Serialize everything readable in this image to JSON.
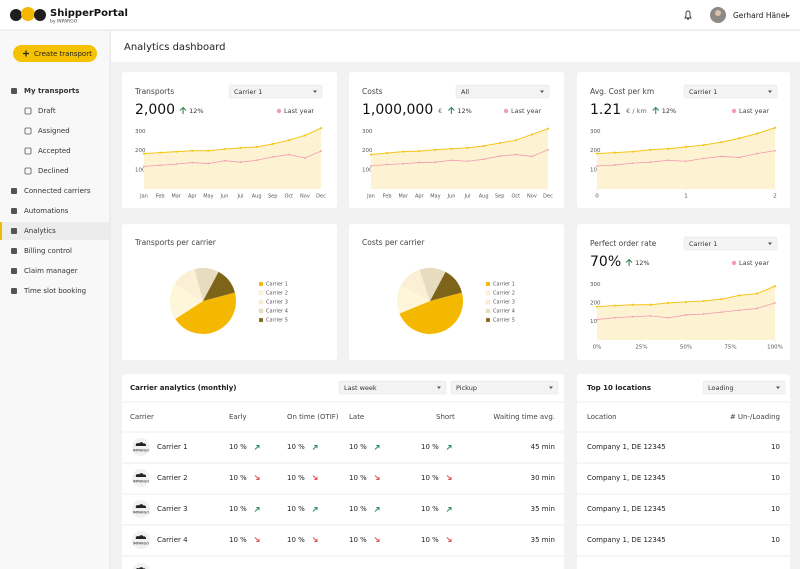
{
  "header": {
    "app_name": "ShipperPortal",
    "app_sub": "by INPARGO",
    "user_name": "Gerhard Hänel"
  },
  "sidebar": {
    "button": "Create transport",
    "items": [
      {
        "label": "My transports",
        "children": [
          {
            "label": "Draft"
          },
          {
            "label": "Assigned"
          },
          {
            "label": "Accepted"
          },
          {
            "label": "Declined"
          }
        ]
      },
      {
        "label": "Connected carriers"
      },
      {
        "label": "Automations"
      },
      {
        "label": "Analytics",
        "active": true
      },
      {
        "label": "Billing control"
      },
      {
        "label": "Claim manager"
      },
      {
        "label": "Time slot booking"
      }
    ]
  },
  "page_title": "Analytics dashboard",
  "chart_data": [
    {
      "type": "line",
      "title": "Transports",
      "filter": "Carrier 1",
      "kpi": "2,000",
      "change": "12%",
      "categories": [
        "Jan",
        "Feb",
        "Mar",
        "Apr",
        "May",
        "Jun",
        "Jul",
        "Aug",
        "Sep",
        "Oct",
        "Nov",
        "Dec"
      ],
      "ylim": [
        0,
        350
      ],
      "yticks": [
        100,
        200,
        300
      ],
      "series": [
        {
          "color": "#f5c518",
          "values": [
            185,
            190,
            195,
            200,
            200,
            208,
            215,
            220,
            235,
            255,
            280,
            318
          ]
        },
        {
          "name": "Last year",
          "color": "#f29bb2",
          "values": [
            118,
            124,
            130,
            138,
            133,
            148,
            140,
            150,
            168,
            180,
            162,
            198
          ]
        }
      ]
    },
    {
      "type": "line",
      "title": "Costs",
      "filter": "All",
      "kpi": "1,000,000",
      "unit": "€",
      "change": "12%",
      "categories": [
        "Jan",
        "Feb",
        "Mar",
        "Apr",
        "May",
        "Jun",
        "Jul",
        "Aug",
        "Sep",
        "Oct",
        "Nov",
        "Dec"
      ],
      "ylim": [
        0,
        350
      ],
      "yticks": [
        100,
        200,
        300
      ],
      "series": [
        {
          "color": "#f5c518",
          "values": [
            180,
            188,
            195,
            198,
            205,
            210,
            215,
            225,
            240,
            255,
            285,
            315
          ]
        },
        {
          "name": "Last year",
          "color": "#f29bb2",
          "values": [
            120,
            128,
            132,
            138,
            140,
            150,
            145,
            155,
            172,
            180,
            170,
            205
          ]
        }
      ]
    },
    {
      "type": "line",
      "title": "Avg. Cost per km",
      "filter": "Carrier 1",
      "kpi": "1.21",
      "unit": "€ / km",
      "change": "12%",
      "x": [
        0,
        0.2,
        0.4,
        0.6,
        0.8,
        1,
        1.2,
        1.4,
        1.6,
        1.8,
        2
      ],
      "xlim": [
        0,
        2
      ],
      "xticks": [
        0,
        1,
        2
      ],
      "ylim": [
        0,
        350
      ],
      "yticks": [
        100,
        200,
        300
      ],
      "series": [
        {
          "color": "#f5c518",
          "values": [
            185,
            190,
            195,
            205,
            210,
            220,
            230,
            245,
            265,
            290,
            320
          ]
        },
        {
          "name": "Last year",
          "color": "#f29bb2",
          "values": [
            120,
            125,
            135,
            140,
            150,
            145,
            160,
            170,
            165,
            185,
            200
          ]
        }
      ]
    },
    {
      "type": "pie",
      "title": "Transports per carrier",
      "categories": [
        "Carrier 1",
        "Carrier 2",
        "Carrier 3",
        "Carrier 4",
        "Carrier 5"
      ],
      "values": [
        45,
        18,
        12,
        12,
        13
      ],
      "colors": [
        "#f5b800",
        "#fef6d8",
        "#fbefd6",
        "#e8dcc0",
        "#7d6418"
      ]
    },
    {
      "type": "pie",
      "title": "Costs per carrier",
      "categories": [
        "Carrier 1",
        "Carrier 2",
        "Carrier 3",
        "Carrier 4",
        "Carrier 5"
      ],
      "values": [
        48,
        14,
        12,
        13,
        13
      ],
      "colors": [
        "#f5b800",
        "#fef6d8",
        "#fbefd6",
        "#e8dcc0",
        "#7d6418"
      ]
    },
    {
      "type": "line",
      "title": "Perfect order rate",
      "filter": "Carrier 1",
      "kpi": "70%",
      "change": "12%",
      "x": [
        0,
        10,
        20,
        30,
        40,
        50,
        60,
        70,
        80,
        90,
        100
      ],
      "xlim": [
        0,
        100
      ],
      "xticks": [
        {
          "value": 0,
          "label": "0%"
        },
        {
          "value": 25,
          "label": "25%"
        },
        {
          "value": 50,
          "label": "50%"
        },
        {
          "value": 75,
          "label": "75%"
        },
        {
          "value": 100,
          "label": "100%"
        }
      ],
      "ylim": [
        0,
        350
      ],
      "yticks": [
        100,
        200,
        300
      ],
      "series": [
        {
          "color": "#f5c518",
          "values": [
            180,
            185,
            190,
            190,
            200,
            205,
            210,
            220,
            240,
            250,
            290
          ]
        },
        {
          "name": "Last year",
          "color": "#f29bb2",
          "values": [
            110,
            120,
            125,
            130,
            120,
            135,
            140,
            150,
            160,
            170,
            200
          ]
        }
      ]
    }
  ],
  "carrier_table": {
    "title": "Carrier analytics (monthly)",
    "filters": [
      "Last week",
      "Pickup"
    ],
    "logo_text": "IMPARGO",
    "columns": [
      "Carrier",
      "Early",
      "On time (OTIF)",
      "Late",
      "Short",
      "Waiting time avg."
    ],
    "rows": [
      {
        "carrier": "Carrier 1",
        "cells": [
          "10 %",
          "10 %",
          "10 %",
          "10 %"
        ],
        "trends": [
          "up",
          "up",
          "up",
          "up"
        ],
        "wait": "45 min"
      },
      {
        "carrier": "Carrier 2",
        "cells": [
          "10 %",
          "10 %",
          "10 %",
          "10 %"
        ],
        "trends": [
          "down",
          "down",
          "down",
          "down"
        ],
        "wait": "30 min"
      },
      {
        "carrier": "Carrier 3",
        "cells": [
          "10 %",
          "10 %",
          "10 %",
          "10 %"
        ],
        "trends": [
          "up",
          "up",
          "up",
          "up"
        ],
        "wait": "35 min"
      },
      {
        "carrier": "Carrier 4",
        "cells": [
          "10 %",
          "10 %",
          "10 %",
          "10 %"
        ],
        "trends": [
          "down",
          "down",
          "down",
          "down"
        ],
        "wait": "35 min"
      }
    ]
  },
  "locations_table": {
    "title": "Top 10 locations",
    "filter": "Loading",
    "columns": [
      "Location",
      "# Un-/Loading"
    ],
    "rows": [
      [
        "Company 1, DE 12345",
        "10"
      ],
      [
        "Company 1, DE 12345",
        "10"
      ],
      [
        "Company 1, DE 12345",
        "10"
      ],
      [
        "Company 1, DE 12345",
        "10"
      ]
    ]
  }
}
